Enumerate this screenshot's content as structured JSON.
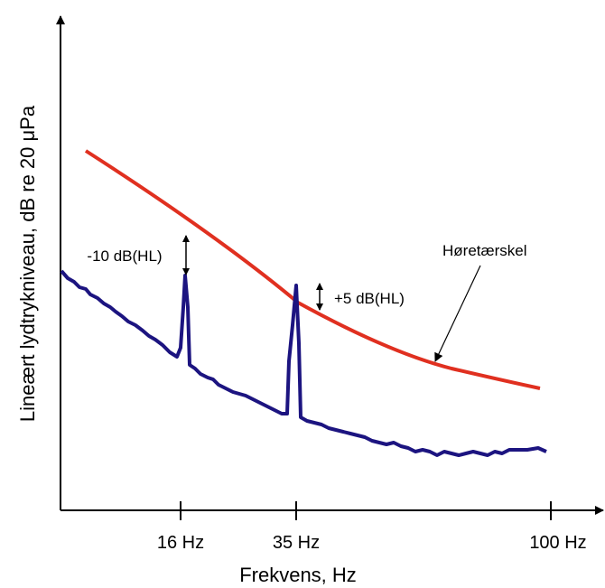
{
  "axes": {
    "x_label": "Frekvens, Hz",
    "y_label": "Lineært lydtrykniveau, dB re 20 μPa",
    "x_ticks": [
      "16 Hz",
      "35 Hz",
      "100 Hz"
    ]
  },
  "annotations": {
    "threshold": "Høretærskel",
    "minus": "-10 dB(HL)",
    "plus": "+5 dB(HL)"
  }
}
